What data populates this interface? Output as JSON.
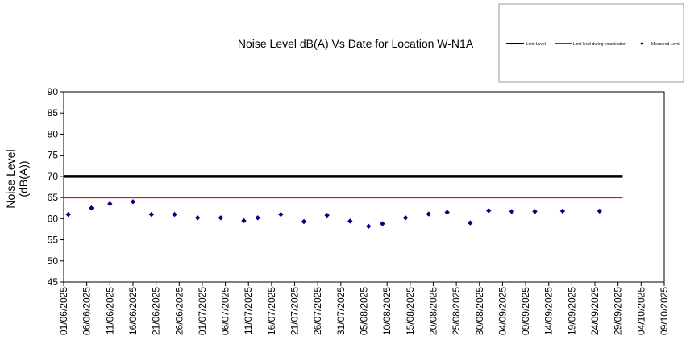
{
  "chart_data": {
    "type": "scatter",
    "title": "Noise Level dB(A) Vs Date for Location W-N1A",
    "ylabel_line1": "Noise Level",
    "ylabel_line2": "(dB(A))",
    "xlabel": "",
    "ylim": [
      45,
      90
    ],
    "yticks": [
      45,
      50,
      55,
      60,
      65,
      70,
      75,
      80,
      85,
      90
    ],
    "xlim": [
      "2025-06-01",
      "2025-10-09"
    ],
    "xticks": [
      "01/06/2025",
      "06/06/2025",
      "11/06/2025",
      "16/06/2025",
      "21/06/2025",
      "26/06/2025",
      "01/07/2025",
      "06/07/2025",
      "11/07/2025",
      "16/07/2025",
      "21/07/2025",
      "26/07/2025",
      "31/07/2025",
      "05/08/2025",
      "10/08/2025",
      "15/08/2025",
      "20/08/2025",
      "25/08/2025",
      "30/08/2025",
      "04/09/2025",
      "09/09/2025",
      "14/09/2025",
      "19/09/2025",
      "24/09/2025",
      "29/09/2025",
      "04/10/2025",
      "09/10/2025"
    ],
    "grid": false,
    "legend_position": "top-right",
    "colors": {
      "limit": "#000000",
      "exam_limit": "#ff0000",
      "measured": "#000080"
    },
    "series": [
      {
        "name": "Limit Level",
        "kind": "line",
        "x": [
          "2025-06-01",
          "2025-09-30"
        ],
        "y": [
          70,
          70
        ]
      },
      {
        "name": "Limit level during examination",
        "kind": "line",
        "x": [
          "2025-06-01",
          "2025-09-30"
        ],
        "y": [
          65,
          65
        ]
      },
      {
        "name": "Measured Level",
        "kind": "scatter",
        "x": [
          "2025-06-02",
          "2025-06-07",
          "2025-06-11",
          "2025-06-16",
          "2025-06-20",
          "2025-06-25",
          "2025-06-30",
          "2025-07-05",
          "2025-07-10",
          "2025-07-13",
          "2025-07-18",
          "2025-07-23",
          "2025-07-28",
          "2025-08-02",
          "2025-08-06",
          "2025-08-09",
          "2025-08-14",
          "2025-08-19",
          "2025-08-23",
          "2025-08-28",
          "2025-09-01",
          "2025-09-06",
          "2025-09-11",
          "2025-09-17",
          "2025-09-25"
        ],
        "y": [
          61.0,
          62.5,
          63.5,
          64.0,
          61.0,
          61.0,
          60.2,
          60.2,
          59.5,
          60.2,
          61.0,
          59.3,
          60.8,
          59.4,
          58.2,
          58.8,
          60.2,
          61.1,
          61.5,
          59.0,
          61.9,
          61.7,
          61.7,
          61.8,
          61.8
        ]
      }
    ]
  }
}
